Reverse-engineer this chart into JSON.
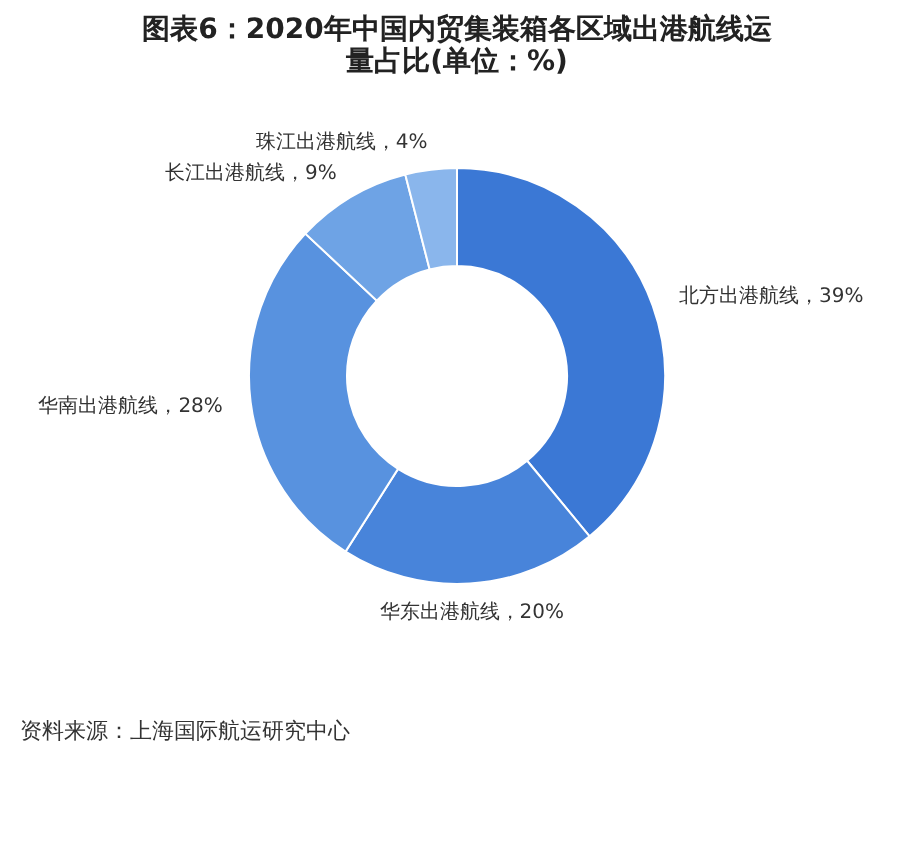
{
  "chart_data": {
    "type": "donut",
    "title": "图表6：2020年中国内贸集装箱各区域出港航线运量占比(单位：%)",
    "categories": [
      "北方出港航线",
      "华东出港航线",
      "华南出港航线",
      "长江出港航线",
      "珠江出港航线"
    ],
    "values": [
      39,
      20,
      28,
      9,
      4
    ],
    "value_labels": [
      "39%",
      "20%",
      "28%",
      "9%",
      "4%"
    ],
    "colors": [
      "#3b78d5",
      "#4884da",
      "#5892df",
      "#6ea3e5",
      "#8ab6ec"
    ],
    "annotations": [
      "资料来源：上海国际航运研究中心"
    ]
  }
}
